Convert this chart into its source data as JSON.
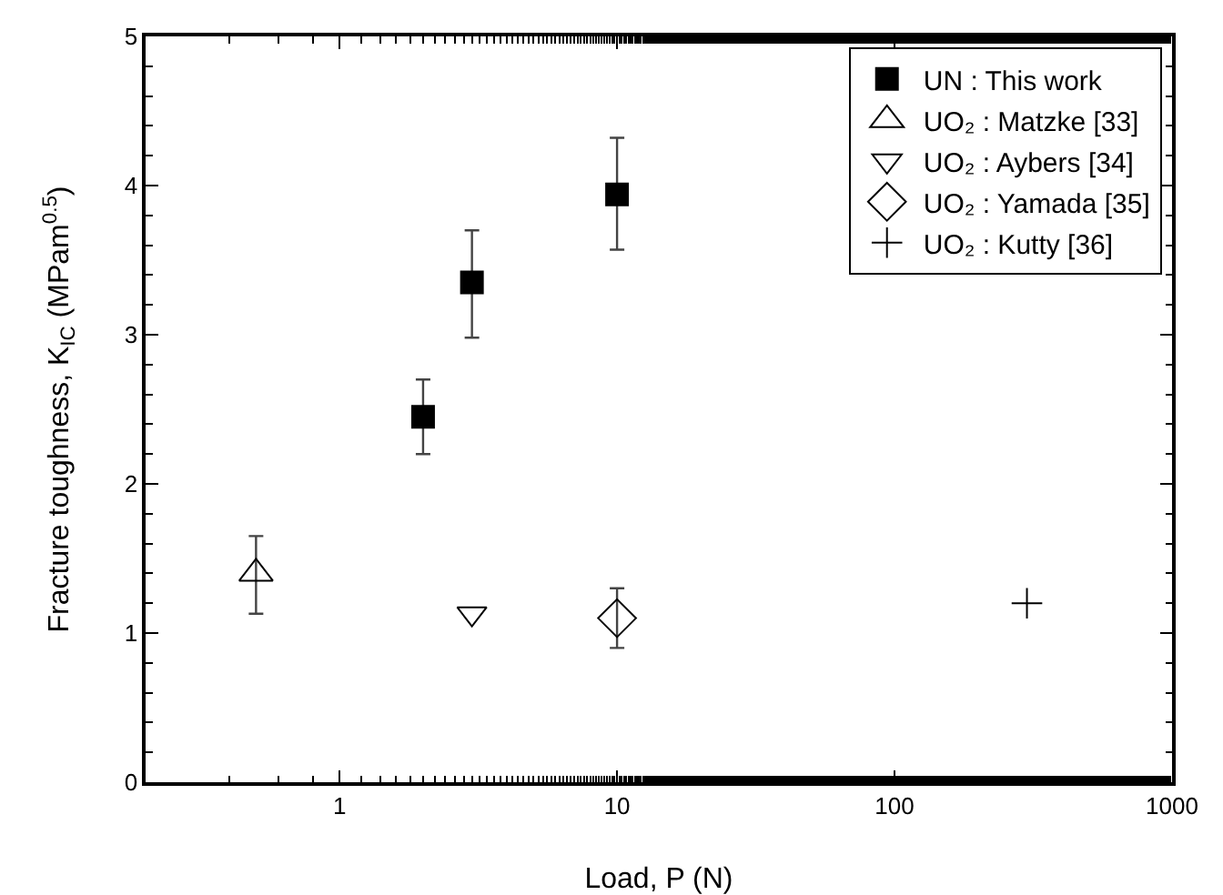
{
  "chart_data": {
    "type": "scatter",
    "xlabel": "Load, P (N)",
    "ylabel": "Fracture toughness, K$_{IC}$ (MPam$^{0.5}$)",
    "log": "x",
    "xlim": [
      0.2,
      1000
    ],
    "xticks": [
      1,
      10,
      100,
      1000
    ],
    "ylim": [
      0,
      5
    ],
    "yticks": [
      0,
      1,
      2,
      3,
      4,
      5
    ],
    "grid": false,
    "legend": "top right",
    "series": [
      {
        "name": "UN : This work",
        "color": "#000000",
        "marker": "square",
        "x": [
          2,
          3,
          10
        ],
        "values": [
          2.45,
          3.35,
          3.94
        ],
        "errors": [
          [
            2.2,
            2.7
          ],
          [
            2.98,
            3.7
          ],
          [
            3.57,
            4.32
          ]
        ]
      },
      {
        "name": "UO₂ : Matzke [33]",
        "color": "#000000",
        "marker": "triangle",
        "x": [
          0.5
        ],
        "values": [
          1.4
        ],
        "errors": [
          [
            1.13,
            1.65
          ]
        ]
      },
      {
        "name": "UO₂ : Aybers [34]",
        "color": "#000000",
        "marker": "triangle-down",
        "x": [
          3
        ],
        "values": [
          1.13
        ]
      },
      {
        "name": "UO₂ : Yamada [35]",
        "color": "#000000",
        "marker": "diamond",
        "x": [
          10
        ],
        "values": [
          1.1
        ],
        "errors": [
          [
            0.9,
            1.3
          ]
        ]
      },
      {
        "name": "UO₂ : Kutty [36]",
        "color": "#000000",
        "marker": "cross",
        "x": [
          300
        ],
        "values": [
          1.2
        ]
      }
    ]
  }
}
